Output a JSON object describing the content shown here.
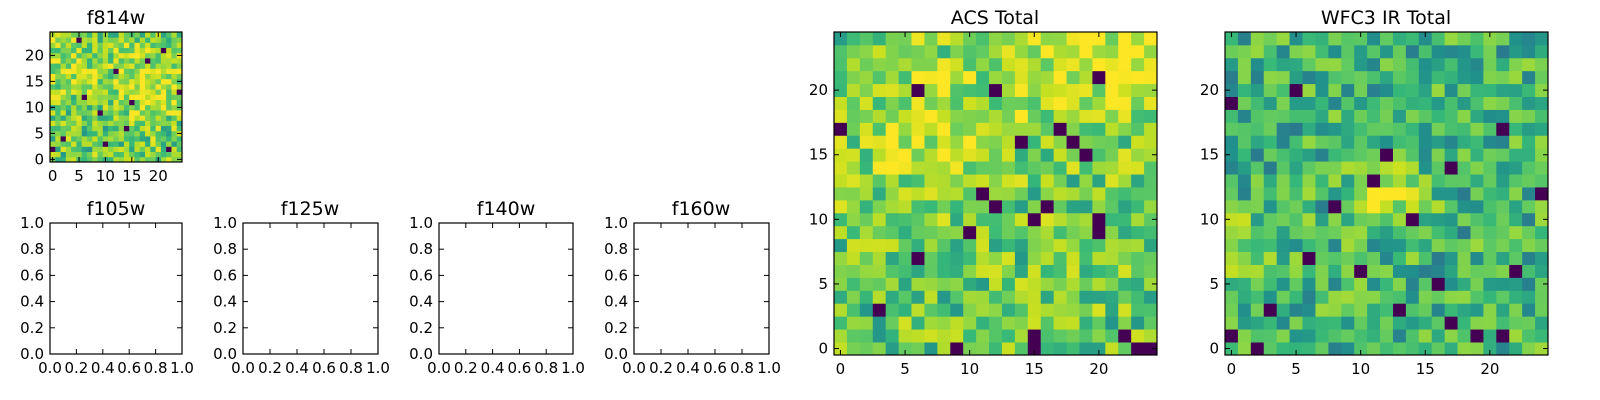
{
  "figure": {
    "colormap": [
      "#440154",
      "#31688e",
      "#21918c",
      "#35b779",
      "#5ec962",
      "#90d743",
      "#c8e020",
      "#fde725"
    ],
    "value_range": [
      0,
      1
    ]
  },
  "chart_data": [
    {
      "id": "f814w",
      "type": "heatmap",
      "title": "f814w",
      "xlabel": "",
      "ylabel": "",
      "grid": false,
      "xlim": [
        -0.5,
        24.5
      ],
      "ylim": [
        -0.5,
        24.5
      ],
      "xticks": [
        0,
        5,
        10,
        15,
        20
      ],
      "yticks": [
        0,
        5,
        10,
        15,
        20
      ],
      "xtick_labels": [
        "0",
        "5",
        "10",
        "15",
        "20"
      ],
      "ytick_labels": [
        "0",
        "5",
        "10",
        "15",
        "20"
      ],
      "shape": [
        25,
        25
      ],
      "seed": 814,
      "mean": 0.62,
      "spread": 0.32,
      "hot_spots": [
        {
          "x": 18,
          "y": 15,
          "r": 5,
          "amp": 0.25
        },
        {
          "x": 2,
          "y": 19,
          "r": 5,
          "amp": 0.15
        }
      ],
      "dark_pixels": [
        [
          14,
          6
        ],
        [
          10,
          3
        ],
        [
          15,
          11
        ],
        [
          24,
          13
        ],
        [
          21,
          21
        ],
        [
          0,
          2
        ],
        [
          2,
          4
        ],
        [
          12,
          17
        ],
        [
          6,
          12
        ],
        [
          22,
          2
        ],
        [
          5,
          23
        ],
        [
          18,
          19
        ],
        [
          9,
          9
        ]
      ]
    },
    {
      "id": "f105w",
      "type": "heatmap",
      "title": "f105w",
      "xlabel": "",
      "ylabel": "",
      "grid": false,
      "empty": true,
      "xlim": [
        0,
        1
      ],
      "ylim": [
        0,
        1
      ],
      "xticks": [
        0,
        0.2,
        0.4,
        0.6,
        0.8,
        1.0
      ],
      "yticks": [
        0,
        0.2,
        0.4,
        0.6,
        0.8,
        1.0
      ],
      "xtick_labels": [
        "0.0",
        "0.2",
        "0.4",
        "0.6",
        "0.8",
        "1.0"
      ],
      "ytick_labels": [
        "0.0",
        "0.2",
        "0.4",
        "0.6",
        "0.8",
        "1.0"
      ]
    },
    {
      "id": "f125w",
      "type": "heatmap",
      "title": "f125w",
      "xlabel": "",
      "ylabel": "",
      "grid": false,
      "empty": true,
      "xlim": [
        0,
        1
      ],
      "ylim": [
        0,
        1
      ],
      "xticks": [
        0,
        0.2,
        0.4,
        0.6,
        0.8,
        1.0
      ],
      "yticks": [
        0,
        0.2,
        0.4,
        0.6,
        0.8,
        1.0
      ],
      "xtick_labels": [
        "0.0",
        "0.2",
        "0.4",
        "0.6",
        "0.8",
        "1.0"
      ],
      "ytick_labels": [
        "0.0",
        "0.2",
        "0.4",
        "0.6",
        "0.8",
        "1.0"
      ]
    },
    {
      "id": "f140w",
      "type": "heatmap",
      "title": "f140w",
      "xlabel": "",
      "ylabel": "",
      "grid": false,
      "empty": true,
      "xlim": [
        0,
        1
      ],
      "ylim": [
        0,
        1
      ],
      "xticks": [
        0,
        0.2,
        0.4,
        0.6,
        0.8,
        1.0
      ],
      "yticks": [
        0,
        0.2,
        0.4,
        0.6,
        0.8,
        1.0
      ],
      "xtick_labels": [
        "0.0",
        "0.2",
        "0.4",
        "0.6",
        "0.8",
        "1.0"
      ],
      "ytick_labels": [
        "0.0",
        "0.2",
        "0.4",
        "0.6",
        "0.8",
        "1.0"
      ]
    },
    {
      "id": "f160w",
      "type": "heatmap",
      "title": "f160w",
      "xlabel": "",
      "ylabel": "",
      "grid": false,
      "empty": true,
      "xlim": [
        0,
        1
      ],
      "ylim": [
        0,
        1
      ],
      "xticks": [
        0,
        0.2,
        0.4,
        0.6,
        0.8,
        1.0
      ],
      "yticks": [
        0,
        0.2,
        0.4,
        0.6,
        0.8,
        1.0
      ],
      "xtick_labels": [
        "0.0",
        "0.2",
        "0.4",
        "0.6",
        "0.8",
        "1.0"
      ],
      "ytick_labels": [
        "0.0",
        "0.2",
        "0.4",
        "0.6",
        "0.8",
        "1.0"
      ]
    },
    {
      "id": "acs-total",
      "type": "heatmap",
      "title": "ACS Total",
      "xlabel": "",
      "ylabel": "",
      "grid": false,
      "xlim": [
        -0.5,
        24.5
      ],
      "ylim": [
        -0.5,
        24.5
      ],
      "xticks": [
        0,
        5,
        10,
        15,
        20
      ],
      "yticks": [
        0,
        5,
        10,
        15,
        20
      ],
      "xtick_labels": [
        "0",
        "5",
        "10",
        "15",
        "20"
      ],
      "ytick_labels": [
        "0",
        "5",
        "10",
        "15",
        "20"
      ],
      "shape": [
        25,
        25
      ],
      "seed": 1701,
      "mean": 0.6,
      "spread": 0.3,
      "hot_spots": [
        {
          "x": 7,
          "y": 17,
          "r": 4,
          "amp": 0.25
        },
        {
          "x": 19,
          "y": 22,
          "r": 4,
          "amp": 0.25
        },
        {
          "x": 24,
          "y": 22,
          "r": 2,
          "amp": 0.3
        }
      ],
      "dark_pixels": [
        [
          12,
          20
        ],
        [
          6,
          20
        ],
        [
          0,
          17
        ],
        [
          17,
          17
        ],
        [
          14,
          16
        ],
        [
          18,
          16
        ],
        [
          20,
          21
        ],
        [
          16,
          11
        ],
        [
          19,
          15
        ],
        [
          11,
          12
        ],
        [
          15,
          10
        ],
        [
          20,
          9
        ],
        [
          20,
          10
        ],
        [
          10,
          9
        ],
        [
          6,
          7
        ],
        [
          15,
          0
        ],
        [
          15,
          1
        ],
        [
          22,
          1
        ],
        [
          23,
          0
        ],
        [
          24,
          0
        ],
        [
          9,
          0
        ],
        [
          3,
          3
        ],
        [
          12,
          11
        ]
      ]
    },
    {
      "id": "wfc3-ir-total",
      "type": "heatmap",
      "title": "WFC3 IR Total",
      "xlabel": "",
      "ylabel": "",
      "grid": false,
      "xlim": [
        -0.5,
        24.5
      ],
      "ylim": [
        -0.5,
        24.5
      ],
      "xticks": [
        0,
        5,
        10,
        15,
        20
      ],
      "yticks": [
        0,
        5,
        10,
        15,
        20
      ],
      "xtick_labels": [
        "0",
        "5",
        "10",
        "15",
        "20"
      ],
      "ytick_labels": [
        "0",
        "5",
        "10",
        "15",
        "20"
      ],
      "shape": [
        25,
        25
      ],
      "seed": 3160,
      "mean": 0.48,
      "spread": 0.28,
      "hot_spots": [
        {
          "x": 12,
          "y": 12,
          "r": 2,
          "amp": 0.35
        },
        {
          "x": 1,
          "y": 8,
          "r": 2,
          "amp": 0.2
        }
      ],
      "dark_pixels": [
        [
          0,
          19
        ],
        [
          12,
          15
        ],
        [
          11,
          13
        ],
        [
          14,
          10
        ],
        [
          21,
          17
        ],
        [
          5,
          20
        ],
        [
          17,
          14
        ],
        [
          0,
          1
        ],
        [
          2,
          0
        ],
        [
          3,
          3
        ],
        [
          10,
          6
        ],
        [
          17,
          2
        ],
        [
          19,
          1
        ],
        [
          21,
          1
        ],
        [
          13,
          3
        ],
        [
          22,
          6
        ],
        [
          6,
          7
        ],
        [
          8,
          11
        ],
        [
          24,
          12
        ],
        [
          16,
          5
        ]
      ]
    }
  ]
}
